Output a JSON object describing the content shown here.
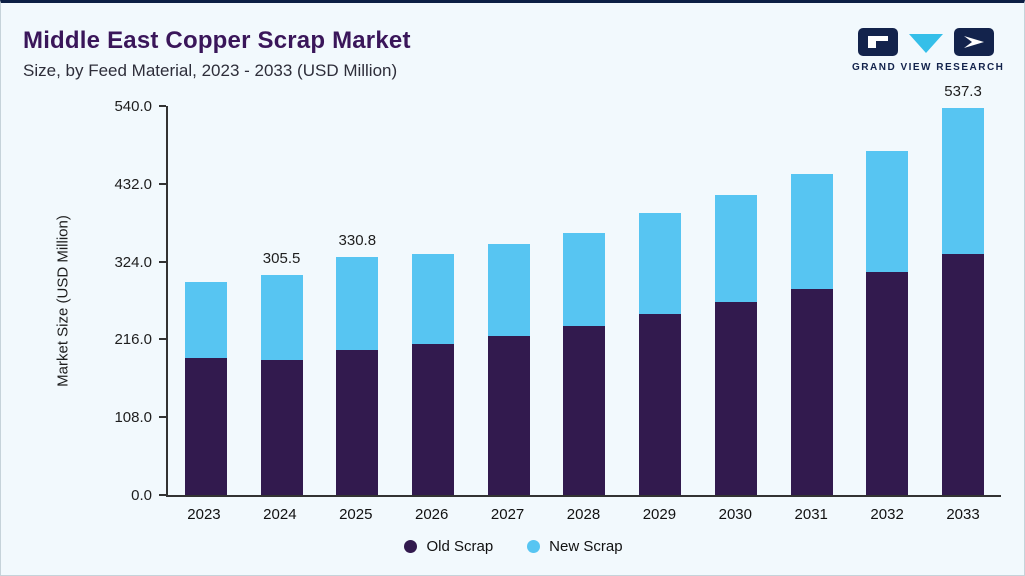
{
  "header": {
    "title": "Middle East Copper Scrap Market",
    "subtitle": "Size, by Feed Material, 2023 - 2033 (USD Million)",
    "brand": "GRAND VIEW RESEARCH"
  },
  "colors": {
    "old_scrap": "#321a4e",
    "new_scrap": "#57c5f2",
    "title_purple": "#3a165a",
    "axis": "#333333",
    "background": "#f2f9fd",
    "top_rule": "#0c1f45",
    "logo_navy": "#13234c",
    "logo_cyan": "#35bfe9"
  },
  "chart_data": {
    "type": "bar",
    "stacked": true,
    "title": "Middle East Copper Scrap Market Size, by Feed Material, 2023 - 2033 (USD Million)",
    "ylabel": "Market Size (USD Million)",
    "ylim": [
      0,
      540
    ],
    "yticks": [
      0,
      108,
      216,
      324,
      432,
      540
    ],
    "grid": false,
    "legend_position": "bottom",
    "categories": [
      "2023",
      "2024",
      "2025",
      "2026",
      "2027",
      "2028",
      "2029",
      "2030",
      "2031",
      "2032",
      "2033"
    ],
    "series": [
      {
        "name": "Old Scrap",
        "color": "#321a4e",
        "values": [
          190,
          188,
          201,
          209,
          221,
          234,
          251,
          268,
          286,
          310,
          335
        ]
      },
      {
        "name": "New Scrap",
        "color": "#57c5f2",
        "values": [
          106,
          117.5,
          129.8,
          125,
          128,
          130,
          141,
          149,
          160,
          168,
          202.3
        ]
      }
    ],
    "totals": [
      296,
      305.5,
      330.8,
      334,
      349,
      364,
      392,
      417,
      446,
      478,
      537.3
    ],
    "bar_labels": [
      "",
      "305.5",
      "330.8",
      "",
      "",
      "",
      "",
      "",
      "",
      "",
      "537.3"
    ]
  }
}
